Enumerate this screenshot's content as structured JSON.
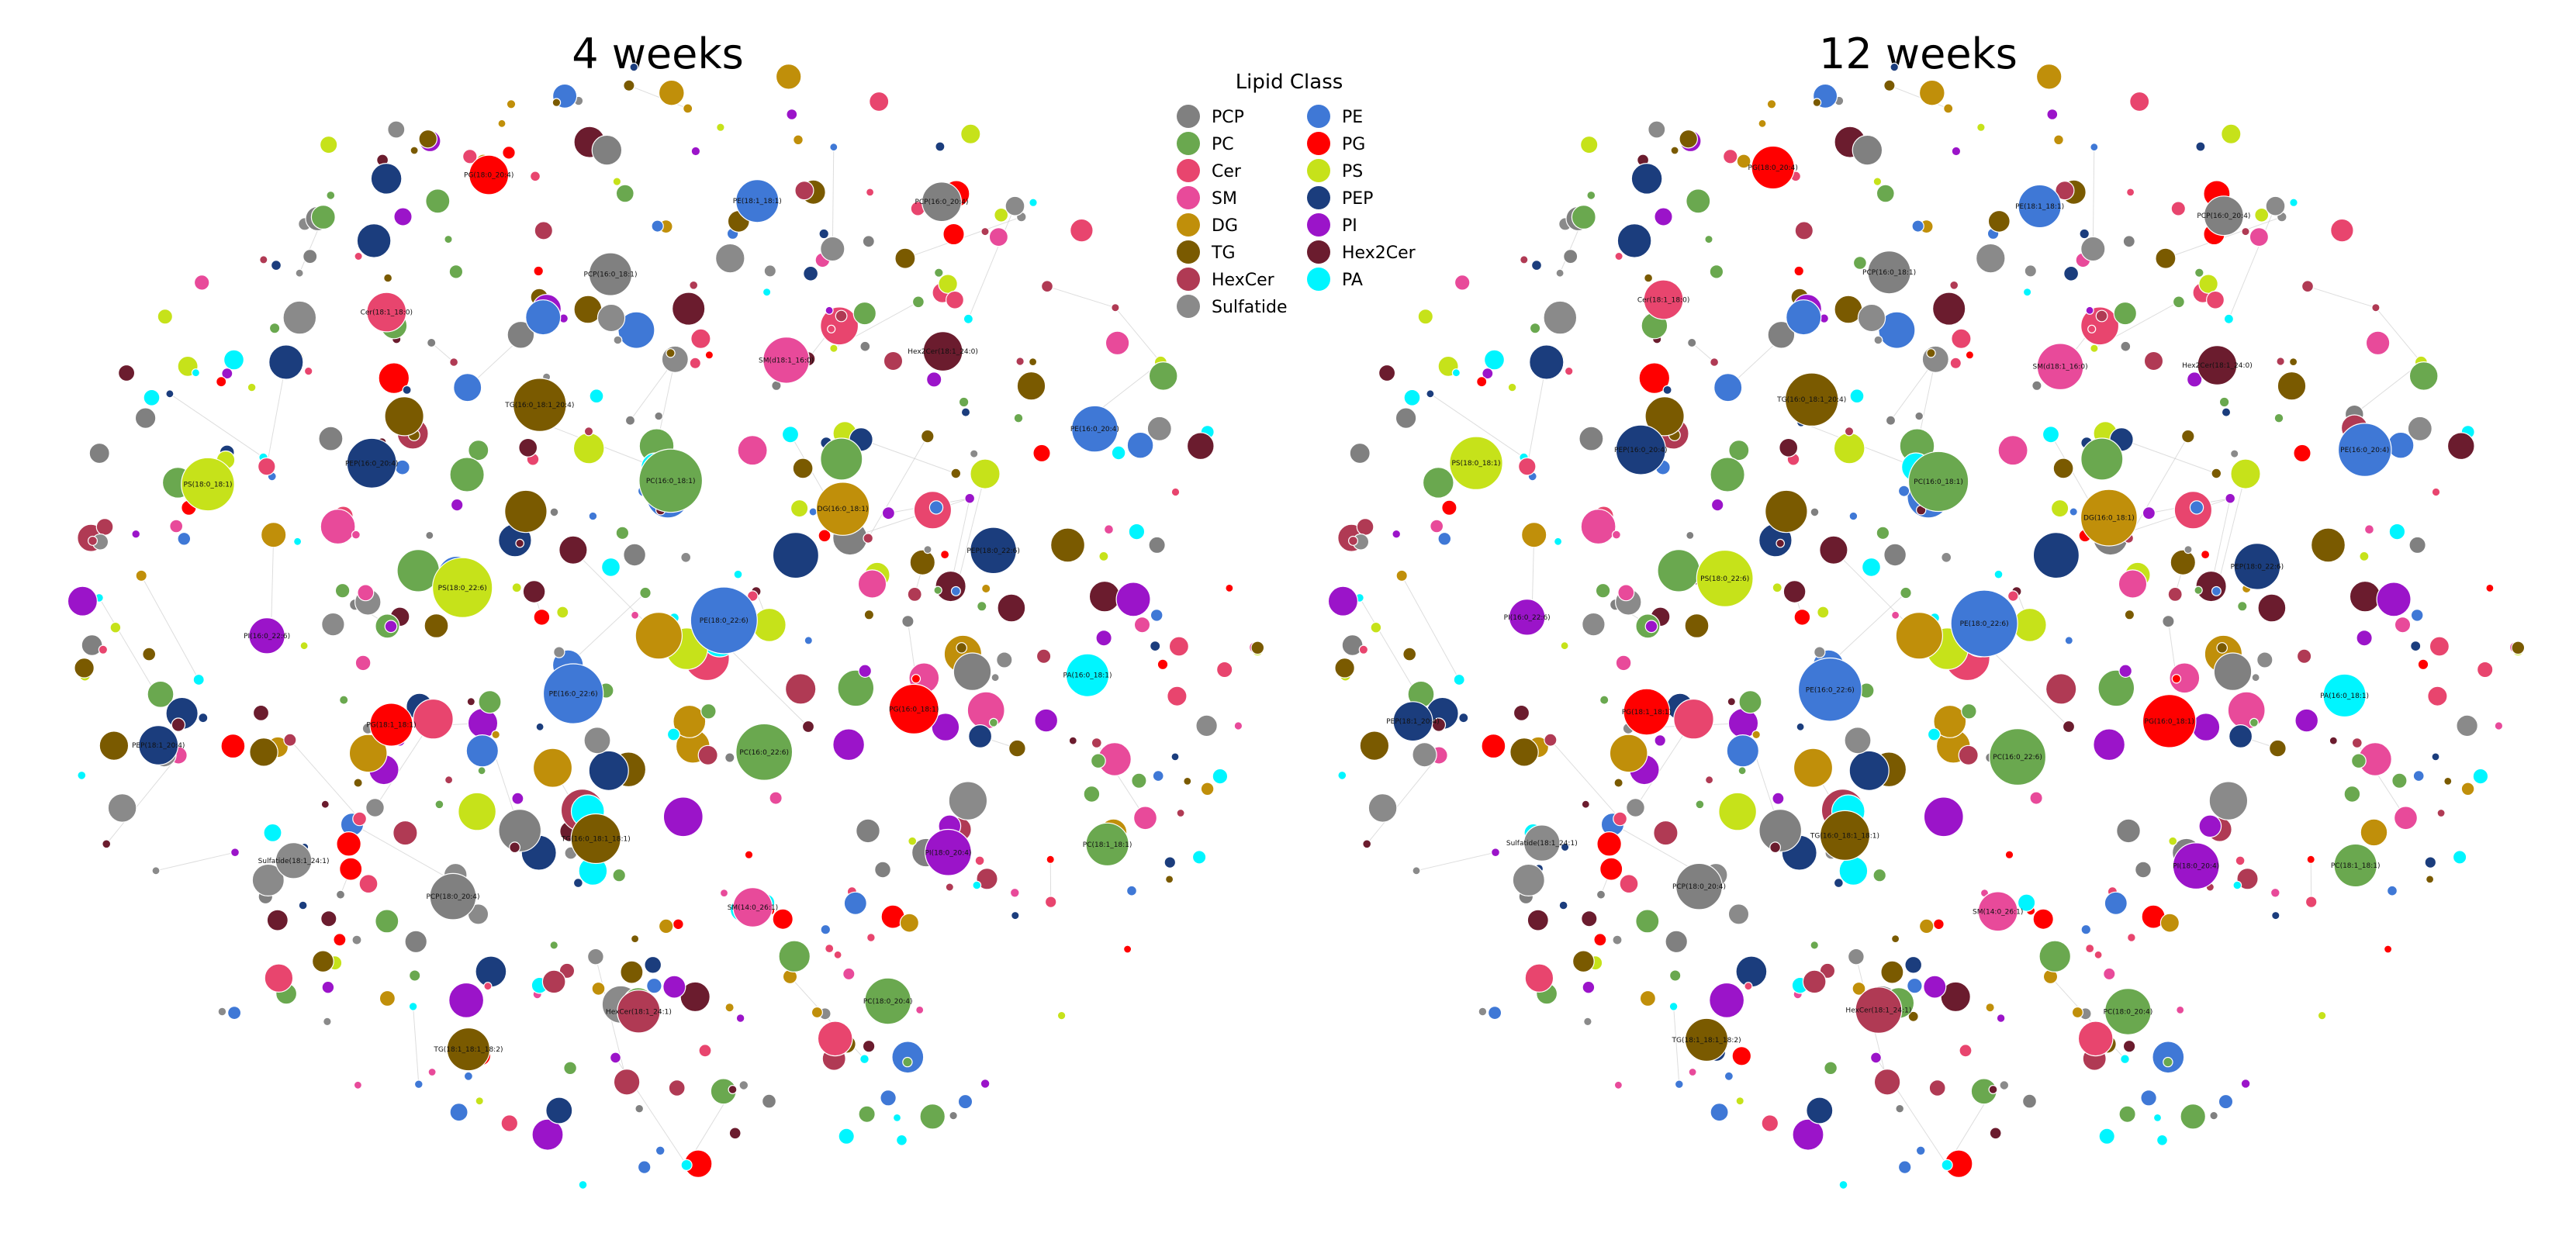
{
  "figure": {
    "panels": [
      {
        "id": "4w",
        "title": "4 weeks",
        "nodes": [
          {
            "label": "PE(18:0_22:6)",
            "class": "PE",
            "size": 3.0
          },
          {
            "label": "PE(16:0_22:6)",
            "class": "PE",
            "size": 2.6
          },
          {
            "label": "PC(16:0_18:1)",
            "class": "PC",
            "size": 2.8
          },
          {
            "label": "PC(16:0_22:6)",
            "class": "PC",
            "size": 2.4
          },
          {
            "label": "PS(18:0_22:6)",
            "class": "PS",
            "size": 2.6
          },
          {
            "label": "DG(16:0_18:1)",
            "class": "DG",
            "size": 2.2
          },
          {
            "label": "TG(16:0_18:1_18:1)",
            "class": "TG",
            "size": 2.0
          },
          {
            "label": "TG(16:0_18:1_20:4)",
            "class": "TG",
            "size": 2.2
          },
          {
            "label": "PG(16:0_18:1)",
            "class": "PG",
            "size": 2.0
          },
          {
            "label": "PG(18:1_18:1)",
            "class": "PG",
            "size": 1.6
          },
          {
            "label": "SM(d18:1_16:0)",
            "class": "SM",
            "size": 1.8
          },
          {
            "label": "SM(14:0_26:1)",
            "class": "SM",
            "size": 1.4
          },
          {
            "label": "PEP(16:0_20:4)",
            "class": "PEP",
            "size": 2.0
          },
          {
            "label": "PEP(18:0_22:6)",
            "class": "PEP",
            "size": 1.8
          },
          {
            "label": "PCP(18:0_20:4)",
            "class": "PCP",
            "size": 1.8
          },
          {
            "label": "PCP(16:0_18:1)",
            "class": "PCP",
            "size": 1.6
          },
          {
            "label": "PI(18:0_20:4)",
            "class": "PI",
            "size": 1.8
          },
          {
            "label": "PI(16:0_22:6)",
            "class": "PI",
            "size": 1.2
          },
          {
            "label": "Hex2Cer(18:1_24:0)",
            "class": "Hex2Cer",
            "size": 1.4
          },
          {
            "label": "HexCer(18:1_24:1)",
            "class": "HexCer",
            "size": 1.6
          },
          {
            "label": "Cer(18:1_18:0)",
            "class": "Cer",
            "size": 1.4
          },
          {
            "label": "PA(16:0_18:1)",
            "class": "PA",
            "size": 1.6
          },
          {
            "label": "Sulfatide(18:1_24:1)",
            "class": "Sulfatide",
            "size": 1.2
          },
          {
            "label": "PE(18:1_18:1)",
            "class": "PE",
            "size": 1.6
          },
          {
            "label": "PC(18:0_20:4)",
            "class": "PC",
            "size": 1.8
          },
          {
            "label": "PS(18:0_18:1)",
            "class": "PS",
            "size": 2.2
          },
          {
            "label": "PE(16:0_20:4)",
            "class": "PE",
            "size": 1.8
          },
          {
            "label": "TG(18:1_18:1_18:2)",
            "class": "TG",
            "size": 1.6
          },
          {
            "label": "PG(18:0_20:4)",
            "class": "PG",
            "size": 1.4
          },
          {
            "label": "PC(18:1_18:1)",
            "class": "PC",
            "size": 1.6
          },
          {
            "label": "PEP(18:1_20:4)",
            "class": "PEP",
            "size": 1.4
          },
          {
            "label": "PCP(16:0_20:4)",
            "class": "PCP",
            "size": 1.4
          }
        ]
      },
      {
        "id": "12w",
        "title": "12 weeks",
        "nodes": [
          {
            "label": "PE(18:0_22:6)",
            "class": "PE",
            "size": 3.0
          },
          {
            "label": "PE(16:0_22:6)",
            "class": "PE",
            "size": 2.8
          },
          {
            "label": "PC(16:0_18:1)",
            "class": "PC",
            "size": 2.6
          },
          {
            "label": "PC(16:0_22:6)",
            "class": "PC",
            "size": 2.4
          },
          {
            "label": "PS(18:0_22:6)",
            "class": "PS",
            "size": 2.4
          },
          {
            "label": "DG(16:0_18:1)",
            "class": "DG",
            "size": 2.4
          },
          {
            "label": "TG(16:0_18:1_18:1)",
            "class": "TG",
            "size": 2.0
          },
          {
            "label": "TG(16:0_18:1_20:4)",
            "class": "TG",
            "size": 2.2
          },
          {
            "label": "PG(16:0_18:1)",
            "class": "PG",
            "size": 2.2
          },
          {
            "label": "PG(18:1_18:1)",
            "class": "PG",
            "size": 1.8
          },
          {
            "label": "SM(d18:1_16:0)",
            "class": "SM",
            "size": 1.8
          },
          {
            "label": "SM(14:0_26:1)",
            "class": "SM",
            "size": 1.4
          },
          {
            "label": "PEP(16:0_20:4)",
            "class": "PEP",
            "size": 2.0
          },
          {
            "label": "PEP(18:0_22:6)",
            "class": "PEP",
            "size": 1.8
          },
          {
            "label": "PCP(18:0_20:4)",
            "class": "PCP",
            "size": 1.8
          },
          {
            "label": "PCP(16:0_18:1)",
            "class": "PCP",
            "size": 1.6
          },
          {
            "label": "PI(18:0_20:4)",
            "class": "PI",
            "size": 1.8
          },
          {
            "label": "PI(16:0_22:6)",
            "class": "PI",
            "size": 1.2
          },
          {
            "label": "Hex2Cer(18:1_24:0)",
            "class": "Hex2Cer",
            "size": 1.4
          },
          {
            "label": "HexCer(18:1_24:1)",
            "class": "HexCer",
            "size": 1.8
          },
          {
            "label": "Cer(18:1_18:0)",
            "class": "Cer",
            "size": 1.4
          },
          {
            "label": "PA(16:0_18:1)",
            "class": "PA",
            "size": 1.6
          },
          {
            "label": "Sulfatide(18:1_24:1)",
            "class": "Sulfatide",
            "size": 1.2
          },
          {
            "label": "PE(18:1_18:1)",
            "class": "PE",
            "size": 1.6
          },
          {
            "label": "PC(18:0_20:4)",
            "class": "PC",
            "size": 1.8
          },
          {
            "label": "PS(18:0_18:1)",
            "class": "PS",
            "size": 2.2
          },
          {
            "label": "PE(16:0_20:4)",
            "class": "PE",
            "size": 2.2
          },
          {
            "label": "TG(18:1_18:1_18:2)",
            "class": "TG",
            "size": 1.6
          },
          {
            "label": "PG(18:0_20:4)",
            "class": "PG",
            "size": 1.6
          },
          {
            "label": "PC(18:1_18:1)",
            "class": "PC",
            "size": 1.6
          },
          {
            "label": "PEP(18:1_20:4)",
            "class": "PEP",
            "size": 1.4
          },
          {
            "label": "PCP(16:0_20:4)",
            "class": "PCP",
            "size": 1.4
          }
        ]
      }
    ]
  },
  "legend": {
    "title": "Lipid Class",
    "left_column": [
      {
        "name": "PCP",
        "color": "#808080"
      },
      {
        "name": "PC",
        "color": "#6aa84f"
      },
      {
        "name": "Cer",
        "color": "#e8456e"
      },
      {
        "name": "SM",
        "color": "#e84a9a"
      },
      {
        "name": "DG",
        "color": "#c08f0a"
      },
      {
        "name": "TG",
        "color": "#7a5a00"
      },
      {
        "name": "HexCer",
        "color": "#b03a54"
      },
      {
        "name": "Sulfatide",
        "color": "#8a8a8a"
      }
    ],
    "right_column": [
      {
        "name": "PE",
        "color": "#3f78d6"
      },
      {
        "name": "PG",
        "color": "#ff0000"
      },
      {
        "name": "PS",
        "color": "#c6e21a"
      },
      {
        "name": "PEP",
        "color": "#1b3d7d"
      },
      {
        "name": "PI",
        "color": "#9b14c9"
      },
      {
        "name": "Hex2Cer",
        "color": "#6b1c2e"
      },
      {
        "name": "PA",
        "color": "#00f5ff"
      }
    ]
  },
  "colors": {
    "PCP": "#808080",
    "PC": "#6aa84f",
    "Cer": "#e8456e",
    "SM": "#e84a9a",
    "DG": "#c08f0a",
    "TG": "#7a5a00",
    "HexCer": "#b03a54",
    "Sulfatide": "#8a8a8a",
    "PE": "#3f78d6",
    "PG": "#ff0000",
    "PS": "#c6e21a",
    "PEP": "#1b3d7d",
    "PI": "#9b14c9",
    "Hex2Cer": "#6b1c2e",
    "PA": "#00f5ff"
  }
}
